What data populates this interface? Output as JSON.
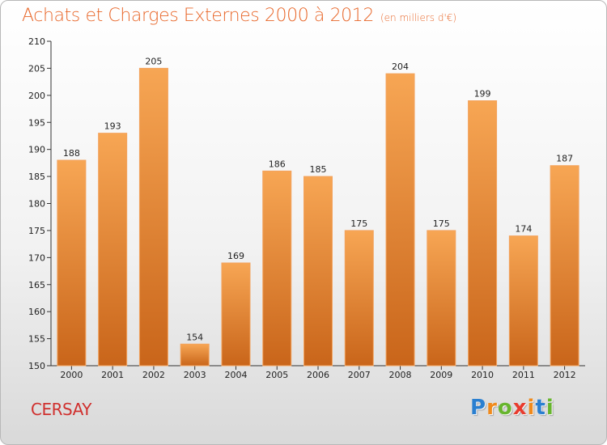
{
  "chart_data": {
    "type": "bar",
    "title": "Achats et Charges Externes 2000 à 2012",
    "subtitle": "(en milliers d'€)",
    "categories": [
      "2000",
      "2001",
      "2002",
      "2003",
      "2004",
      "2005",
      "2006",
      "2007",
      "2008",
      "2009",
      "2010",
      "2011",
      "2012"
    ],
    "values": [
      188,
      193,
      205,
      154,
      169,
      186,
      185,
      175,
      204,
      175,
      199,
      174,
      187
    ],
    "ylim": [
      150,
      210
    ],
    "yticks": [
      150,
      155,
      160,
      165,
      170,
      175,
      180,
      185,
      190,
      195,
      200,
      205,
      210
    ],
    "grid": false,
    "bar_colors": {
      "light": "#f7a654",
      "dark": "#c9651a"
    }
  },
  "commune": "CERSAY",
  "logo": {
    "letters": [
      "P",
      "r",
      "o",
      "x",
      "i",
      "t",
      "i"
    ],
    "colors": [
      "#2a7fd0",
      "#f08a1c",
      "#67b52e",
      "#e83b2e",
      "#f08a1c",
      "#2a7fd0",
      "#67b52e"
    ]
  }
}
